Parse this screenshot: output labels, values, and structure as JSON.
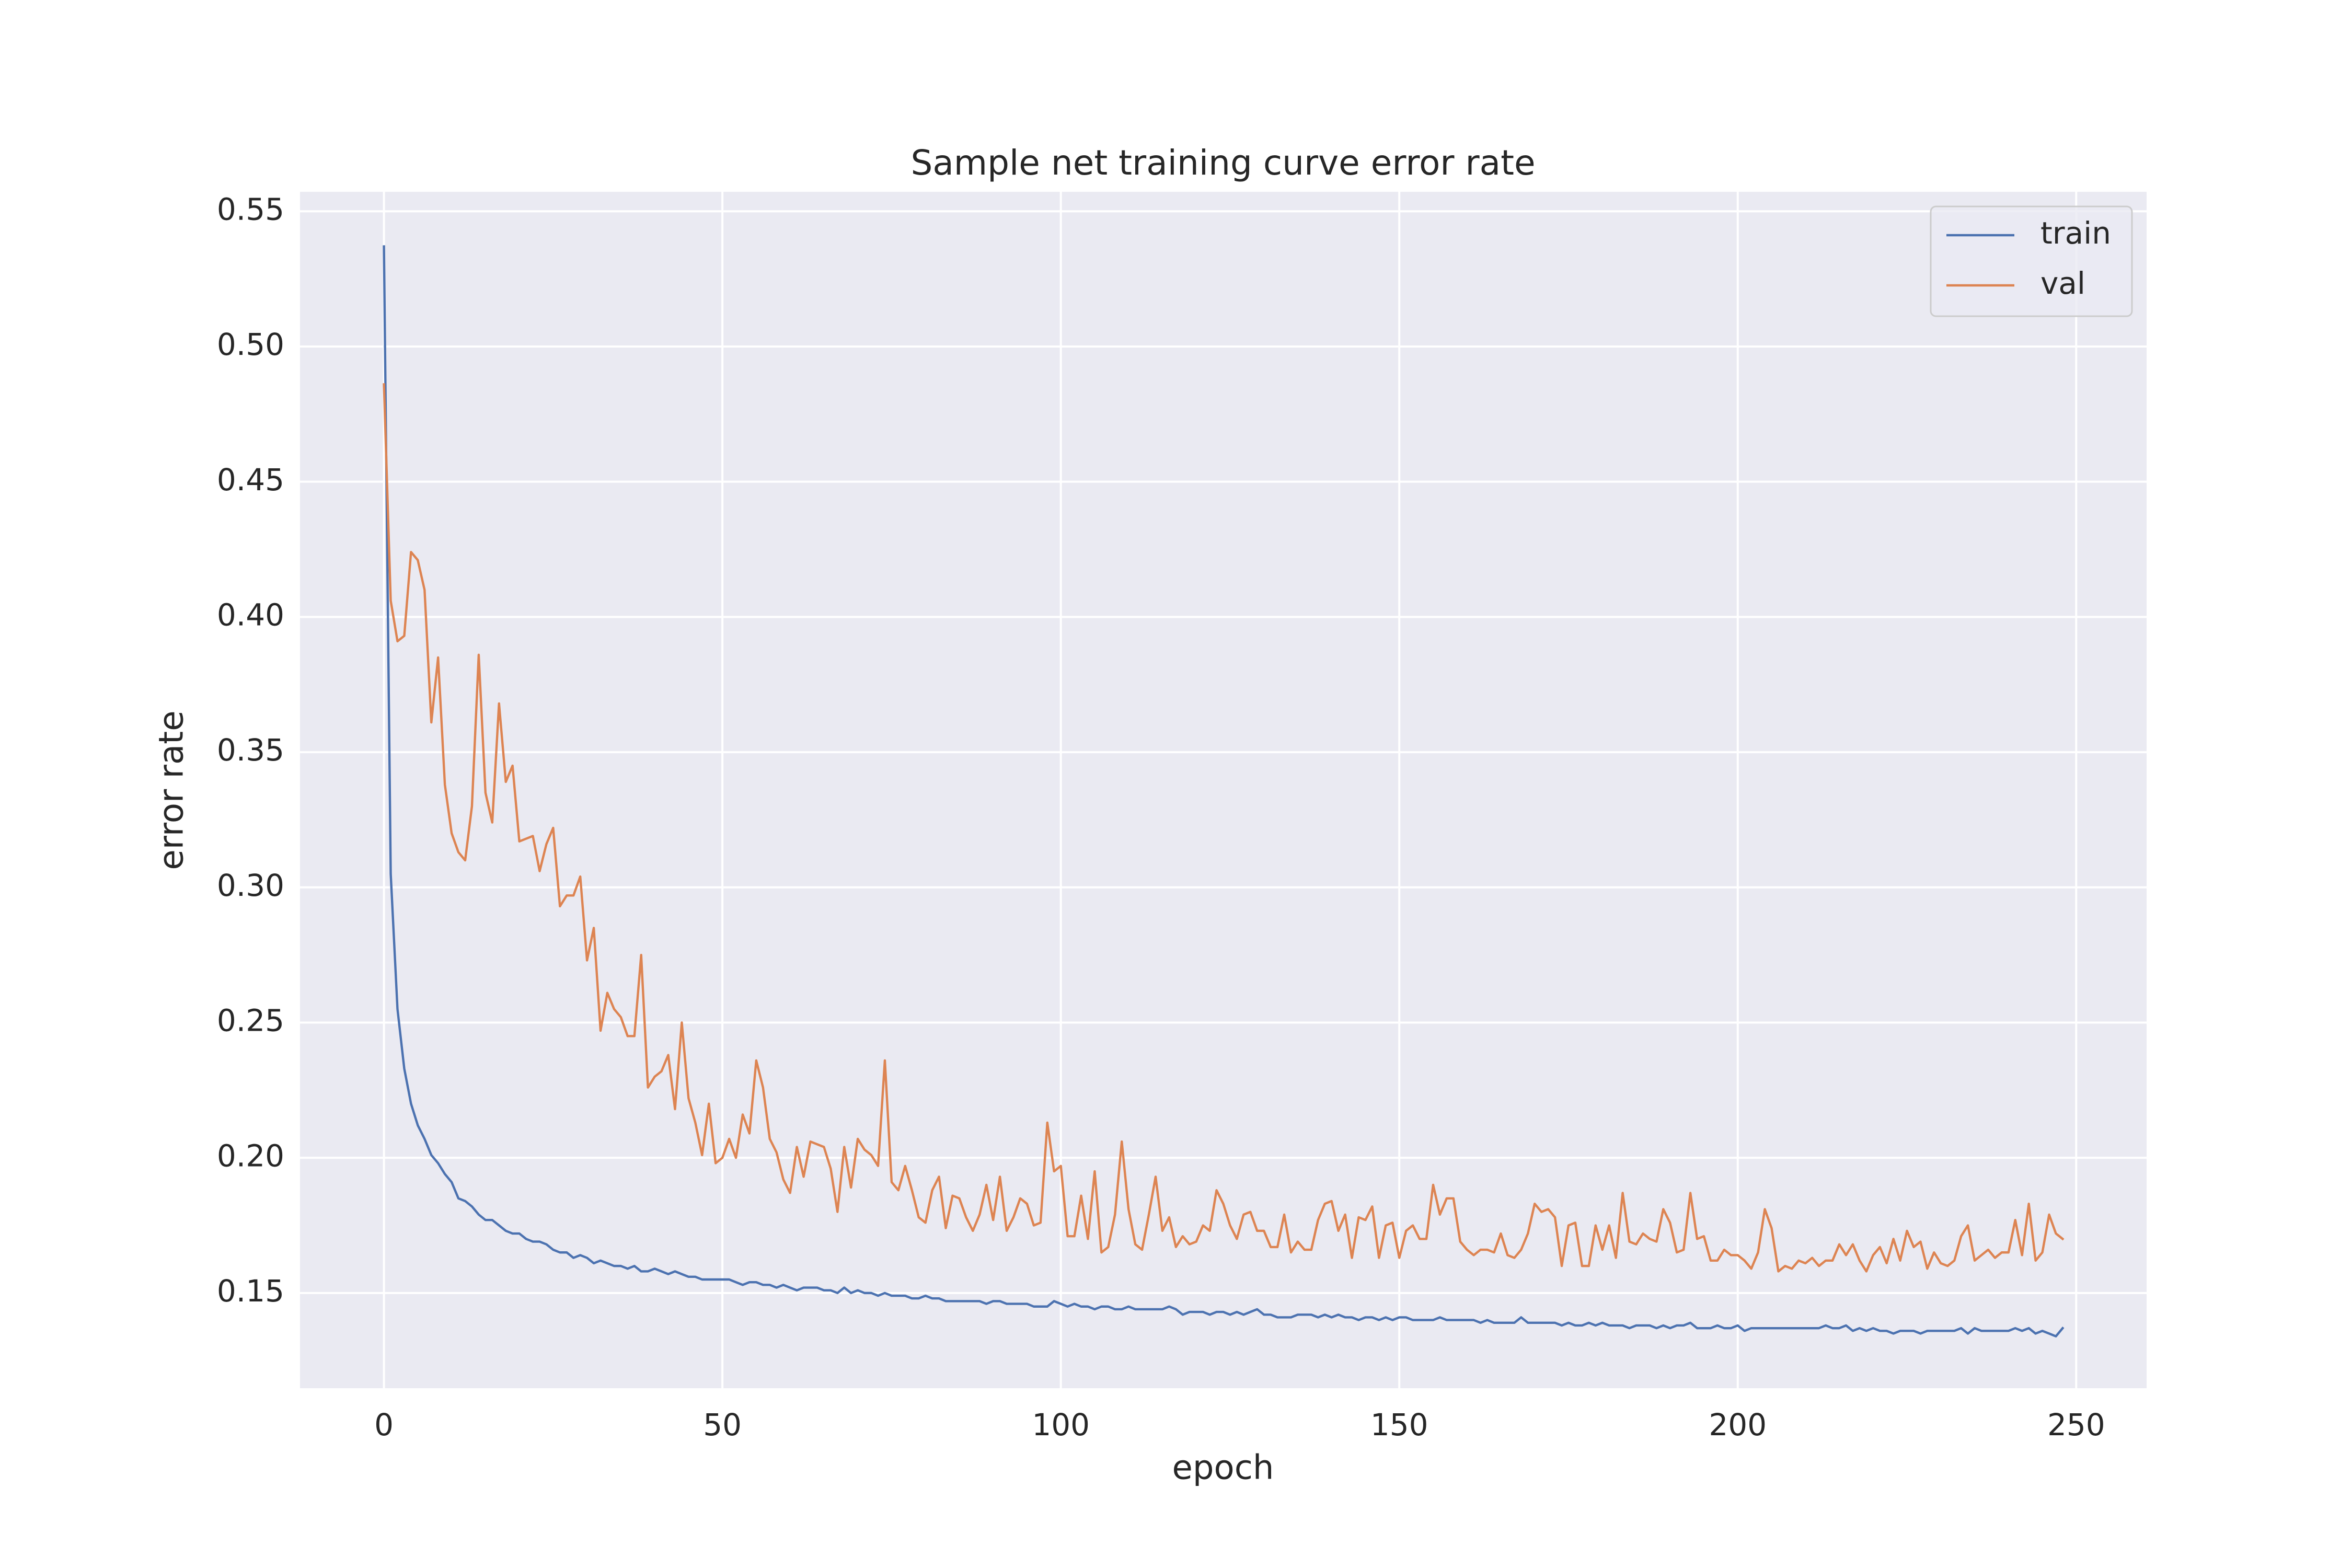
{
  "chart_data": {
    "type": "line",
    "title": "Sample net training curve error rate",
    "xlabel": "epoch",
    "ylabel": "error rate",
    "legend": "upper right",
    "grid": true,
    "xlim": [
      -12.4,
      260.4
    ],
    "xticks": [
      0,
      50,
      100,
      150,
      200,
      250
    ],
    "ylim": [
      0.1148,
      0.5572
    ],
    "yticks": [
      {
        "value": 0.15,
        "label": "0.15"
      },
      {
        "value": 0.2,
        "label": "0.20"
      },
      {
        "value": 0.25,
        "label": "0.25"
      },
      {
        "value": 0.3,
        "label": "0.30"
      },
      {
        "value": 0.35,
        "label": "0.35"
      },
      {
        "value": 0.4,
        "label": "0.40"
      },
      {
        "value": 0.45,
        "label": "0.45"
      },
      {
        "value": 0.5,
        "label": "0.50"
      },
      {
        "value": 0.55,
        "label": "0.55"
      }
    ],
    "x": [
      0,
      1,
      2,
      3,
      4,
      5,
      6,
      7,
      8,
      9,
      10,
      11,
      12,
      13,
      14,
      15,
      16,
      17,
      18,
      19,
      20,
      21,
      22,
      23,
      24,
      25,
      26,
      27,
      28,
      29,
      30,
      31,
      32,
      33,
      34,
      35,
      36,
      37,
      38,
      39,
      40,
      41,
      42,
      43,
      44,
      45,
      46,
      47,
      48,
      49,
      50,
      51,
      52,
      53,
      54,
      55,
      56,
      57,
      58,
      59,
      60,
      61,
      62,
      63,
      64,
      65,
      66,
      67,
      68,
      69,
      70,
      71,
      72,
      73,
      74,
      75,
      76,
      77,
      78,
      79,
      80,
      81,
      82,
      83,
      84,
      85,
      86,
      87,
      88,
      89,
      90,
      91,
      92,
      93,
      94,
      95,
      96,
      97,
      98,
      99,
      100,
      101,
      102,
      103,
      104,
      105,
      106,
      107,
      108,
      109,
      110,
      111,
      112,
      113,
      114,
      115,
      116,
      117,
      118,
      119,
      120,
      121,
      122,
      123,
      124,
      125,
      126,
      127,
      128,
      129,
      130,
      131,
      132,
      133,
      134,
      135,
      136,
      137,
      138,
      139,
      140,
      141,
      142,
      143,
      144,
      145,
      146,
      147,
      148,
      149,
      150,
      151,
      152,
      153,
      154,
      155,
      156,
      157,
      158,
      159,
      160,
      161,
      162,
      163,
      164,
      165,
      166,
      167,
      168,
      169,
      170,
      171,
      172,
      173,
      174,
      175,
      176,
      177,
      178,
      179,
      180,
      181,
      182,
      183,
      184,
      185,
      186,
      187,
      188,
      189,
      190,
      191,
      192,
      193,
      194,
      195,
      196,
      197,
      198,
      199,
      200,
      201,
      202,
      203,
      204,
      205,
      206,
      207,
      208,
      209,
      210,
      211,
      212,
      213,
      214,
      215,
      216,
      217,
      218,
      219,
      220,
      221,
      222,
      223,
      224,
      225,
      226,
      227,
      228,
      229,
      230,
      231,
      232,
      233,
      234,
      235,
      236,
      237,
      238,
      239,
      240,
      241,
      242,
      243,
      244,
      245,
      246,
      247,
      248
    ],
    "series": [
      {
        "name": "train",
        "color": "#4c72b0",
        "values": [
          0.537,
          0.305,
          0.255,
          0.233,
          0.22,
          0.212,
          0.207,
          0.201,
          0.198,
          0.194,
          0.191,
          0.185,
          0.184,
          0.182,
          0.179,
          0.177,
          0.177,
          0.175,
          0.173,
          0.172,
          0.172,
          0.17,
          0.169,
          0.169,
          0.168,
          0.166,
          0.165,
          0.165,
          0.163,
          0.164,
          0.163,
          0.161,
          0.162,
          0.161,
          0.16,
          0.16,
          0.159,
          0.16,
          0.158,
          0.158,
          0.159,
          0.158,
          0.157,
          0.158,
          0.157,
          0.156,
          0.156,
          0.155,
          0.155,
          0.155,
          0.155,
          0.155,
          0.154,
          0.153,
          0.154,
          0.154,
          0.153,
          0.153,
          0.152,
          0.153,
          0.152,
          0.151,
          0.152,
          0.152,
          0.152,
          0.151,
          0.151,
          0.15,
          0.152,
          0.15,
          0.151,
          0.15,
          0.15,
          0.149,
          0.15,
          0.149,
          0.149,
          0.149,
          0.148,
          0.148,
          0.149,
          0.148,
          0.148,
          0.147,
          0.147,
          0.147,
          0.147,
          0.147,
          0.147,
          0.146,
          0.147,
          0.147,
          0.146,
          0.146,
          0.146,
          0.146,
          0.145,
          0.145,
          0.145,
          0.147,
          0.146,
          0.145,
          0.146,
          0.145,
          0.145,
          0.144,
          0.145,
          0.145,
          0.144,
          0.144,
          0.145,
          0.144,
          0.144,
          0.144,
          0.144,
          0.144,
          0.145,
          0.144,
          0.142,
          0.143,
          0.143,
          0.143,
          0.142,
          0.143,
          0.143,
          0.142,
          0.143,
          0.142,
          0.143,
          0.144,
          0.142,
          0.142,
          0.141,
          0.141,
          0.141,
          0.142,
          0.142,
          0.142,
          0.141,
          0.142,
          0.141,
          0.142,
          0.141,
          0.141,
          0.14,
          0.141,
          0.141,
          0.14,
          0.141,
          0.14,
          0.141,
          0.141,
          0.14,
          0.14,
          0.14,
          0.14,
          0.141,
          0.14,
          0.14,
          0.14,
          0.14,
          0.14,
          0.139,
          0.14,
          0.139,
          0.139,
          0.139,
          0.139,
          0.141,
          0.139,
          0.139,
          0.139,
          0.139,
          0.139,
          0.138,
          0.139,
          0.138,
          0.138,
          0.139,
          0.138,
          0.139,
          0.138,
          0.138,
          0.138,
          0.137,
          0.138,
          0.138,
          0.138,
          0.137,
          0.138,
          0.137,
          0.138,
          0.138,
          0.139,
          0.137,
          0.137,
          0.137,
          0.138,
          0.137,
          0.137,
          0.138,
          0.136,
          0.137,
          0.137,
          0.137,
          0.137,
          0.137,
          0.137,
          0.137,
          0.137,
          0.137,
          0.137,
          0.137,
          0.138,
          0.137,
          0.137,
          0.138,
          0.136,
          0.137,
          0.136,
          0.137,
          0.136,
          0.136,
          0.135,
          0.136,
          0.136,
          0.136,
          0.135,
          0.136,
          0.136,
          0.136,
          0.136,
          0.136,
          0.137,
          0.135,
          0.137,
          0.136,
          0.136,
          0.136,
          0.136,
          0.136,
          0.137,
          0.136,
          0.137,
          0.135,
          0.136,
          0.135,
          0.134,
          0.137
        ]
      },
      {
        "name": "val",
        "color": "#dd8452",
        "values": [
          0.486,
          0.406,
          0.391,
          0.393,
          0.424,
          0.421,
          0.41,
          0.361,
          0.385,
          0.338,
          0.32,
          0.313,
          0.31,
          0.33,
          0.386,
          0.335,
          0.324,
          0.368,
          0.339,
          0.345,
          0.317,
          0.318,
          0.319,
          0.306,
          0.316,
          0.322,
          0.293,
          0.297,
          0.297,
          0.304,
          0.273,
          0.285,
          0.247,
          0.261,
          0.255,
          0.252,
          0.245,
          0.245,
          0.275,
          0.226,
          0.23,
          0.232,
          0.238,
          0.218,
          0.25,
          0.222,
          0.213,
          0.201,
          0.22,
          0.198,
          0.2,
          0.207,
          0.2,
          0.216,
          0.209,
          0.236,
          0.226,
          0.207,
          0.202,
          0.192,
          0.187,
          0.204,
          0.193,
          0.206,
          0.205,
          0.204,
          0.196,
          0.18,
          0.204,
          0.189,
          0.207,
          0.203,
          0.201,
          0.197,
          0.236,
          0.191,
          0.188,
          0.197,
          0.188,
          0.178,
          0.176,
          0.188,
          0.193,
          0.174,
          0.186,
          0.185,
          0.178,
          0.173,
          0.179,
          0.19,
          0.177,
          0.193,
          0.173,
          0.178,
          0.185,
          0.183,
          0.175,
          0.176,
          0.213,
          0.195,
          0.197,
          0.171,
          0.171,
          0.186,
          0.17,
          0.195,
          0.165,
          0.167,
          0.179,
          0.206,
          0.181,
          0.168,
          0.166,
          0.179,
          0.193,
          0.173,
          0.178,
          0.167,
          0.171,
          0.168,
          0.169,
          0.175,
          0.173,
          0.188,
          0.183,
          0.175,
          0.17,
          0.179,
          0.18,
          0.173,
          0.173,
          0.167,
          0.167,
          0.179,
          0.165,
          0.169,
          0.166,
          0.166,
          0.177,
          0.183,
          0.184,
          0.173,
          0.179,
          0.163,
          0.178,
          0.177,
          0.182,
          0.163,
          0.175,
          0.176,
          0.163,
          0.173,
          0.175,
          0.17,
          0.17,
          0.19,
          0.179,
          0.185,
          0.185,
          0.169,
          0.166,
          0.164,
          0.166,
          0.166,
          0.165,
          0.172,
          0.164,
          0.163,
          0.166,
          0.172,
          0.183,
          0.18,
          0.181,
          0.178,
          0.16,
          0.175,
          0.176,
          0.16,
          0.16,
          0.175,
          0.166,
          0.175,
          0.163,
          0.187,
          0.169,
          0.168,
          0.172,
          0.17,
          0.169,
          0.181,
          0.176,
          0.165,
          0.166,
          0.187,
          0.17,
          0.171,
          0.162,
          0.162,
          0.166,
          0.164,
          0.164,
          0.162,
          0.159,
          0.165,
          0.181,
          0.174,
          0.158,
          0.16,
          0.159,
          0.162,
          0.161,
          0.163,
          0.16,
          0.162,
          0.162,
          0.168,
          0.164,
          0.168,
          0.162,
          0.158,
          0.164,
          0.167,
          0.161,
          0.17,
          0.162,
          0.173,
          0.167,
          0.169,
          0.159,
          0.165,
          0.161,
          0.16,
          0.162,
          0.171,
          0.175,
          0.162,
          0.164,
          0.166,
          0.163,
          0.165,
          0.165,
          0.177,
          0.164,
          0.183,
          0.162,
          0.165,
          0.179,
          0.172,
          0.17
        ]
      }
    ]
  }
}
